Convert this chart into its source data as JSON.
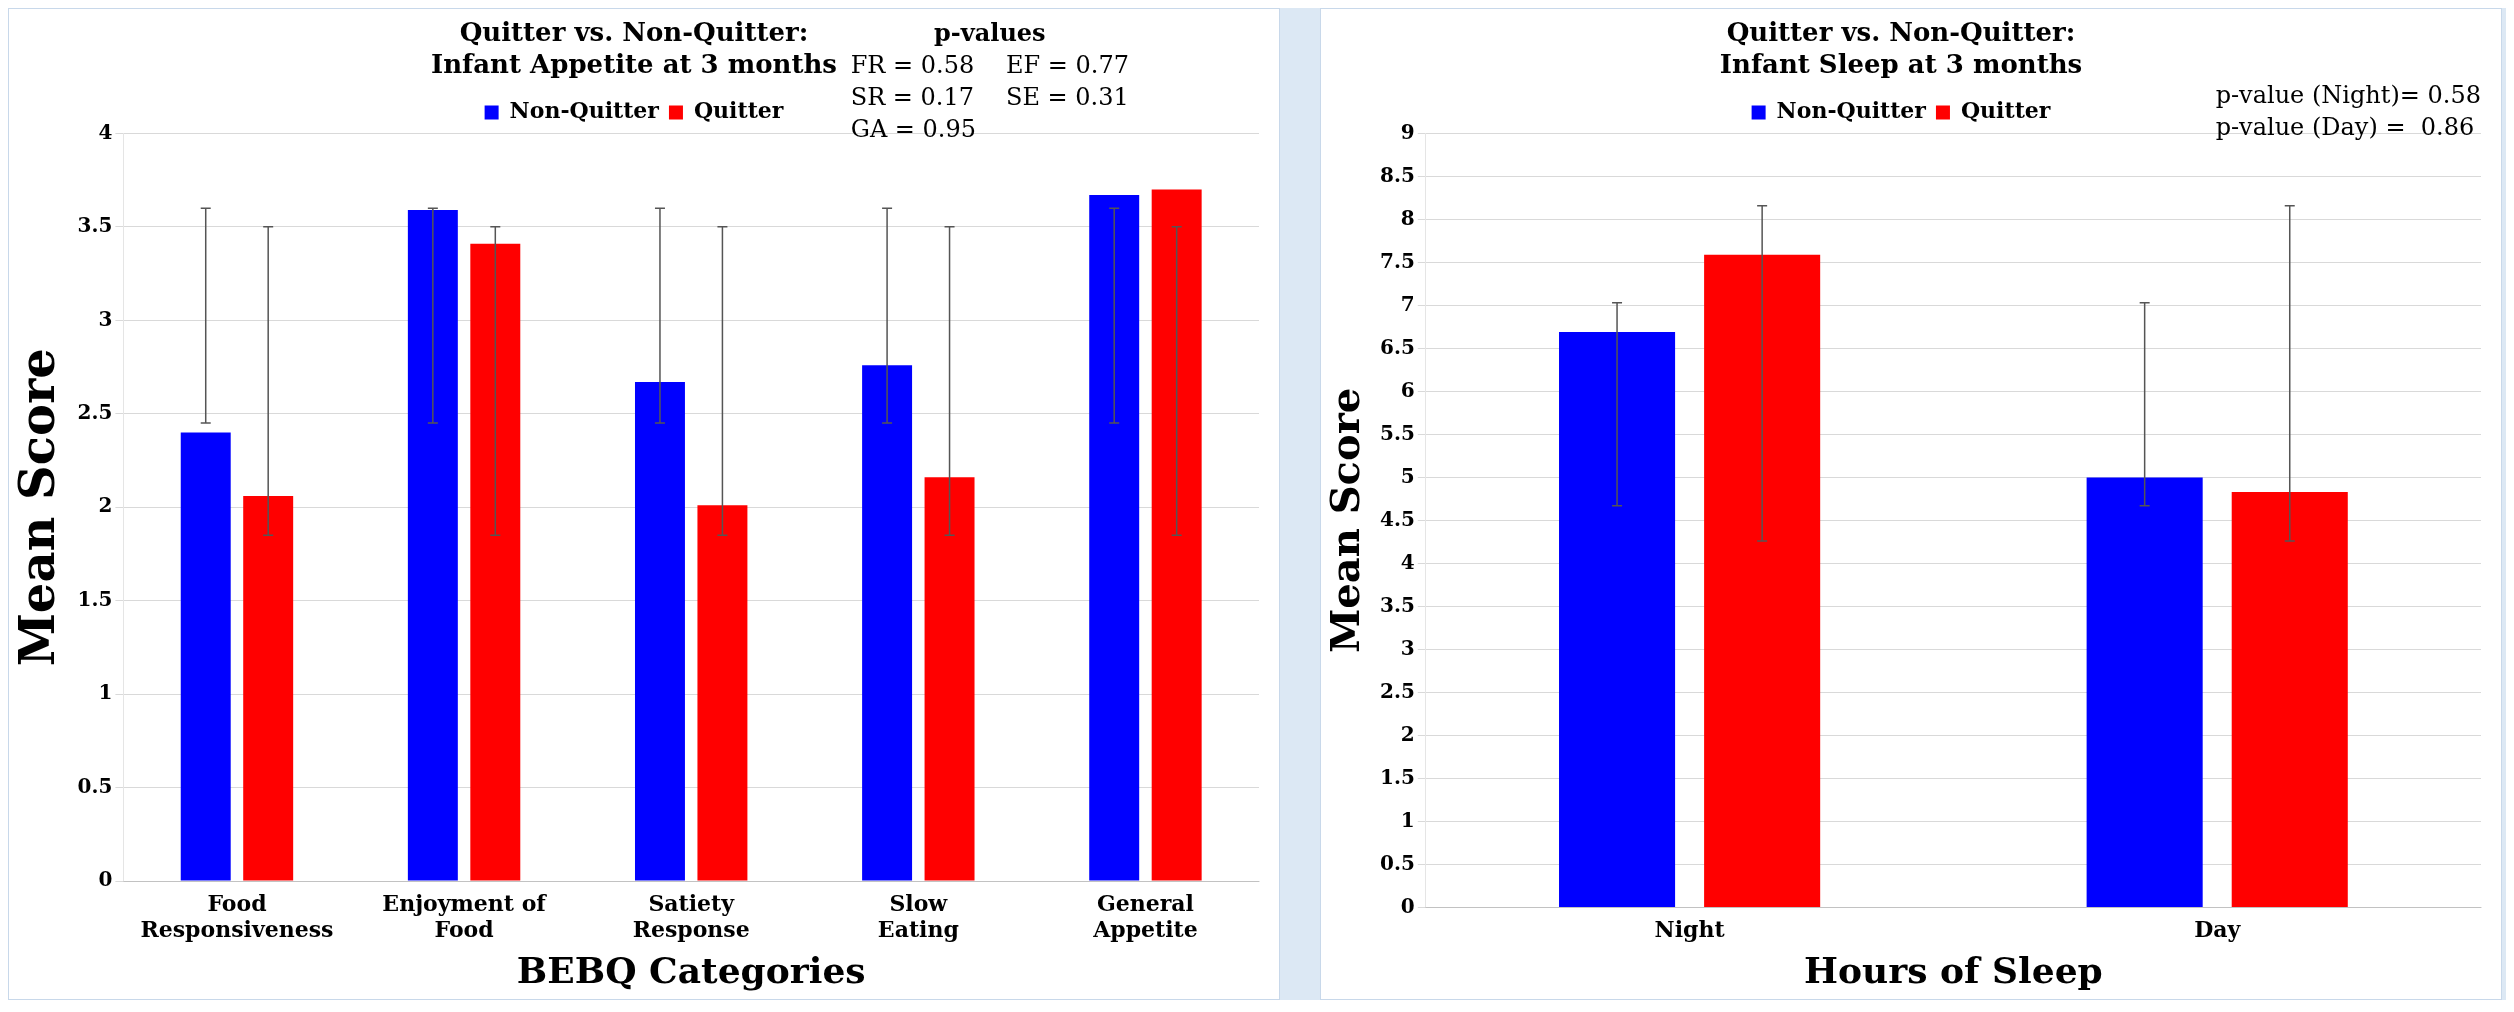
{
  "chart_data": [
    {
      "type": "bar",
      "title": "Quitter vs. Non-Quitter:\nInfant Appetite at 3 months",
      "xlabel": "BEBQ Categories",
      "ylabel": "Mean Score",
      "annotations": [
        "p-values",
        "FR = 0.58",
        "EF = 0.77",
        "SR = 0.17",
        "SE = 0.31",
        "GA = 0.95"
      ],
      "categories": [
        "Food Responsiveness",
        "Enjoyment of Food",
        "Satiety Response",
        "Slow Eating",
        "General Appetite"
      ],
      "series": [
        {
          "name": "Non-Quitter",
          "color": "#0000ff",
          "values": [
            2.4,
            3.59,
            2.67,
            2.76,
            3.67
          ],
          "errors": [
            [
              2.45,
              3.6
            ],
            [
              2.45,
              3.6
            ],
            [
              2.45,
              3.6
            ],
            [
              2.45,
              3.6
            ],
            [
              2.45,
              3.6
            ]
          ]
        },
        {
          "name": "Quitter",
          "color": "#ff0000",
          "values": [
            2.06,
            3.41,
            2.01,
            2.16,
            3.7
          ],
          "errors": [
            [
              1.85,
              3.5
            ],
            [
              1.85,
              3.5
            ],
            [
              1.85,
              3.5
            ],
            [
              1.85,
              3.5
            ],
            [
              1.85,
              3.5
            ]
          ]
        }
      ],
      "ylim": [
        0,
        4
      ],
      "yticks": [
        0,
        0.5,
        1,
        1.5,
        2,
        2.5,
        3,
        3.5,
        4
      ],
      "grid": "y",
      "legend": "top"
    },
    {
      "type": "bar",
      "title": "Quitter vs. Non-Quitter:\nInfant Sleep at 3 months",
      "xlabel": "Hours of Sleep",
      "ylabel": "Mean Score",
      "annotations": [
        "p-value (Night)= 0.58",
        "p-value (Day) =  0.86"
      ],
      "categories": [
        "Night",
        "Day"
      ],
      "series": [
        {
          "name": "Non-Quitter",
          "color": "#0000ff",
          "values": [
            6.69,
            5.0
          ],
          "errors": [
            [
              4.67,
              7.03
            ],
            [
              4.67,
              7.03
            ]
          ]
        },
        {
          "name": "Quitter",
          "color": "#ff0000",
          "values": [
            7.59,
            4.83
          ],
          "errors": [
            [
              4.26,
              8.16
            ],
            [
              4.26,
              8.16
            ]
          ]
        }
      ],
      "ylim": [
        0,
        9
      ],
      "yticks": [
        0,
        0.5,
        1,
        1.5,
        2,
        2.5,
        3,
        3.5,
        4,
        4.5,
        5,
        5.5,
        6,
        6.5,
        7,
        7.5,
        8,
        8.5,
        9
      ],
      "grid": "y",
      "legend": "top"
    }
  ]
}
